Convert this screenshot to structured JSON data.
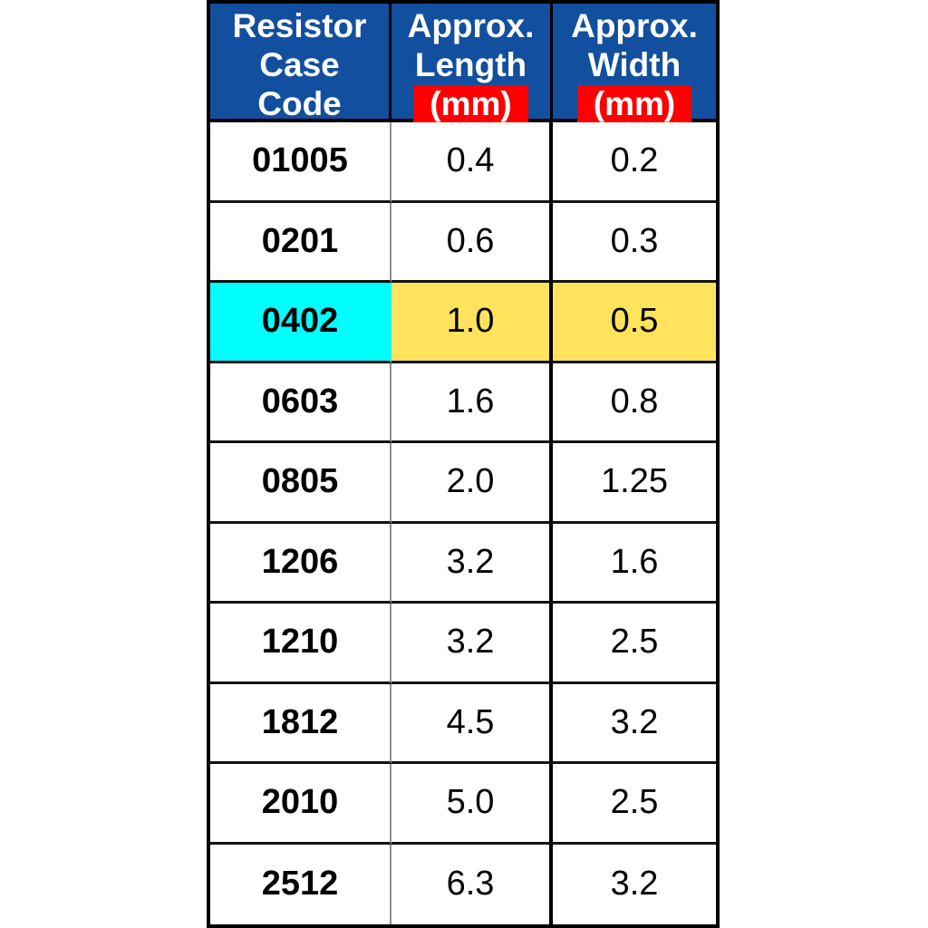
{
  "colors": {
    "header_bg": "#124F9E",
    "header_text": "#FFFFFF",
    "unit_bg": "#FF0000",
    "highlight_code_bg": "#00FFFF",
    "highlight_value_bg": "#FFE35C",
    "border": "#000000",
    "text": "#000000"
  },
  "table": {
    "header": {
      "col1": {
        "lines": [
          "Resistor",
          "Case",
          "Code"
        ]
      },
      "col2": {
        "lines": [
          "Approx.",
          "Length"
        ],
        "unit": "(mm)"
      },
      "col3": {
        "lines": [
          "Approx.",
          "Width"
        ],
        "unit": "(mm)"
      }
    },
    "rows": [
      {
        "code": "01005",
        "length": "0.4",
        "width": "0.2",
        "highlight": false
      },
      {
        "code": "0201",
        "length": "0.6",
        "width": "0.3",
        "highlight": false
      },
      {
        "code": "0402",
        "length": "1.0",
        "width": "0.5",
        "highlight": true
      },
      {
        "code": "0603",
        "length": "1.6",
        "width": "0.8",
        "highlight": false
      },
      {
        "code": "0805",
        "length": "2.0",
        "width": "1.25",
        "highlight": false
      },
      {
        "code": "1206",
        "length": "3.2",
        "width": "1.6",
        "highlight": false
      },
      {
        "code": "1210",
        "length": "3.2",
        "width": "2.5",
        "highlight": false
      },
      {
        "code": "1812",
        "length": "4.5",
        "width": "3.2",
        "highlight": false
      },
      {
        "code": "2010",
        "length": "5.0",
        "width": "2.5",
        "highlight": false
      },
      {
        "code": "2512",
        "length": "6.3",
        "width": "3.2",
        "highlight": false
      }
    ]
  },
  "chart_data": {
    "type": "table",
    "columns": [
      "Resistor Case Code",
      "Approx. Length (mm)",
      "Approx. Width (mm)"
    ],
    "rows": [
      [
        "01005",
        0.4,
        0.2
      ],
      [
        "0201",
        0.6,
        0.3
      ],
      [
        "0402",
        1.0,
        0.5
      ],
      [
        "0603",
        1.6,
        0.8
      ],
      [
        "0805",
        2.0,
        1.25
      ],
      [
        "1206",
        3.2,
        1.6
      ],
      [
        "1210",
        3.2,
        2.5
      ],
      [
        "1812",
        4.5,
        3.2
      ],
      [
        "2010",
        5.0,
        2.5
      ],
      [
        "2512",
        6.3,
        3.2
      ]
    ],
    "highlighted_row": "0402",
    "layout_hints": {
      "header_bg": "#124F9E",
      "unit_label_bg": "#FF0000",
      "highlight_code_bg": "#00FFFF",
      "highlight_value_bg": "#FFE35C"
    }
  }
}
